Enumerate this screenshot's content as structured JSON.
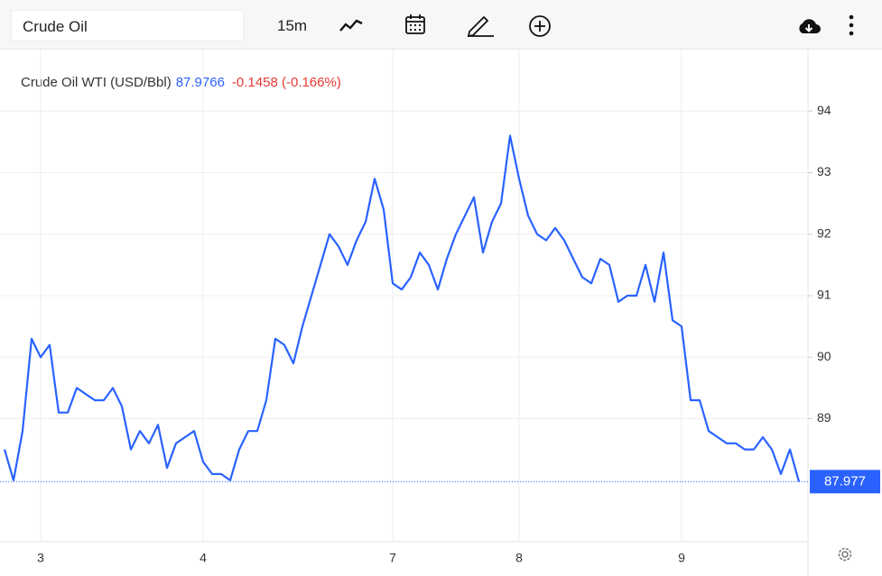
{
  "toolbar": {
    "symbol": "Crude Oil",
    "interval": "15m"
  },
  "chart_data": {
    "type": "line",
    "change": "-0.1458 (-0.166%)",
    "last_value": 87.9766,
    "price_line": 87.977,
    "categories": [
      null,
      null,
      null,
      null,
      "3",
      null,
      null,
      null,
      null,
      null,
      null,
      null,
      null,
      null,
      null,
      null,
      null,
      null,
      null,
      null,
      null,
      null,
      "4",
      null,
      null,
      null,
      null,
      null,
      null,
      null,
      null,
      null,
      null,
      null,
      null,
      null,
      null,
      null,
      null,
      null,
      null,
      null,
      null,
      "7",
      null,
      null,
      null,
      null,
      null,
      null,
      null,
      null,
      null,
      null,
      null,
      null,
      null,
      "8",
      null,
      null,
      null,
      null,
      null,
      null,
      null,
      null,
      null,
      null,
      null,
      null,
      null,
      null,
      null,
      null,
      null,
      "9",
      null,
      null,
      null,
      null,
      null,
      null,
      null,
      null,
      null,
      null,
      null,
      null,
      null
    ],
    "series": [
      {
        "name": "Crude Oil WTI (USD/Bbl)",
        "color": "#2962ff",
        "values": [
          88.5,
          88.0,
          88.8,
          90.3,
          90.0,
          90.2,
          89.1,
          89.1,
          89.5,
          89.4,
          89.3,
          89.3,
          89.5,
          89.2,
          88.5,
          88.8,
          88.6,
          88.9,
          88.2,
          88.6,
          88.7,
          88.8,
          88.3,
          88.1,
          88.1,
          88.0,
          88.5,
          88.8,
          88.8,
          89.3,
          90.3,
          90.2,
          89.9,
          90.5,
          91.0,
          91.5,
          92.0,
          91.8,
          91.5,
          91.9,
          92.2,
          92.9,
          92.4,
          91.2,
          91.1,
          91.3,
          91.7,
          91.5,
          91.1,
          91.6,
          92.0,
          92.3,
          92.6,
          91.7,
          92.2,
          92.5,
          93.6,
          92.9,
          92.3,
          92.0,
          91.9,
          92.1,
          91.9,
          91.6,
          91.3,
          91.2,
          91.6,
          91.5,
          90.9,
          91.0,
          91.0,
          91.5,
          90.9,
          91.7,
          90.6,
          90.5,
          89.3,
          89.3,
          88.8,
          88.7,
          88.6,
          88.6,
          88.5,
          88.5,
          88.7,
          88.5,
          88.1,
          88.5,
          87.9766
        ]
      }
    ],
    "ylim": [
      87,
      95
    ],
    "yticks": [
      89,
      90,
      91,
      92,
      93,
      94
    ],
    "grid": true
  }
}
